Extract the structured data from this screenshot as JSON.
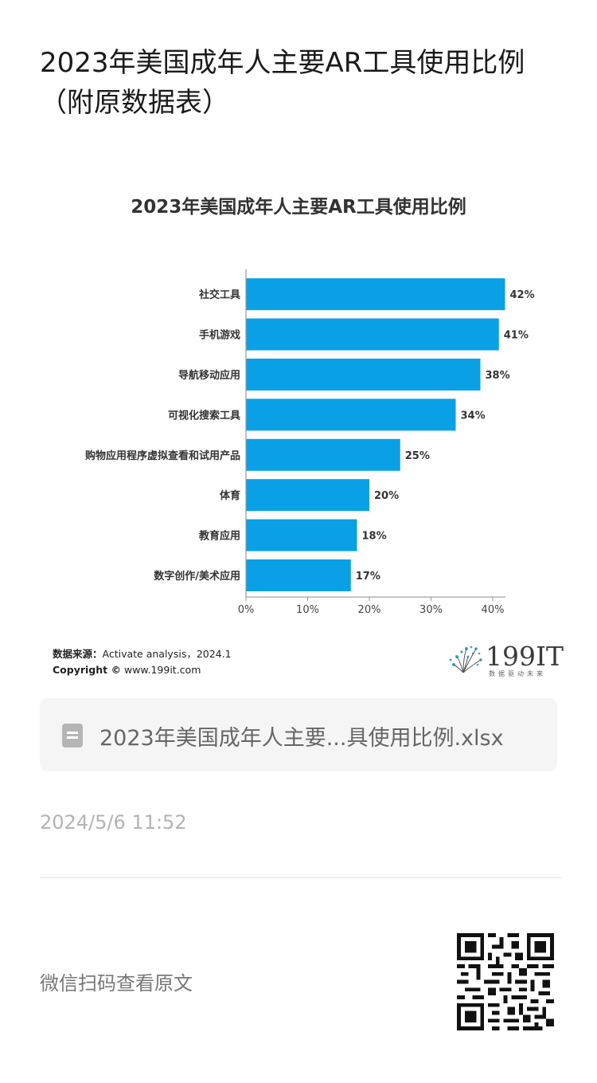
{
  "page": {
    "title": "2023年美国成年人主要AR工具使用比例（附原数据表）"
  },
  "chart_data": {
    "type": "bar",
    "orientation": "horizontal",
    "title": "2023年美国成年人主要AR工具使用比例",
    "categories": [
      "社交工具",
      "手机游戏",
      "导航移动应用",
      "可视化搜索工具",
      "购物应用程序虚拟查看和试用产品",
      "体育",
      "教育应用",
      "数字创作/美术应用"
    ],
    "values": [
      42,
      41,
      38,
      34,
      25,
      20,
      18,
      17
    ],
    "value_labels": [
      "42%",
      "41%",
      "38%",
      "34%",
      "25%",
      "20%",
      "18%",
      "17%"
    ],
    "xlim": [
      0,
      40
    ],
    "xticks": [
      "0%",
      "10%",
      "20%",
      "30%",
      "40%"
    ],
    "bar_color": "#0aa0e6",
    "grid": false
  },
  "source": {
    "label": "数据来源：",
    "text": "Activate analysis，2024.1",
    "copyright_label": "Copyright ©",
    "copyright_text": "www.199it.com"
  },
  "logo": {
    "text": "199IT",
    "subtitle": "数据驱动未来"
  },
  "file": {
    "icon": "spreadsheet-icon",
    "name": "2023年美国成年人主要...具使用比例.xlsx"
  },
  "timestamp": "2024/5/6 11:52",
  "qr": {
    "caption": "微信扫码查看原文",
    "icon": "qr-code-icon"
  }
}
